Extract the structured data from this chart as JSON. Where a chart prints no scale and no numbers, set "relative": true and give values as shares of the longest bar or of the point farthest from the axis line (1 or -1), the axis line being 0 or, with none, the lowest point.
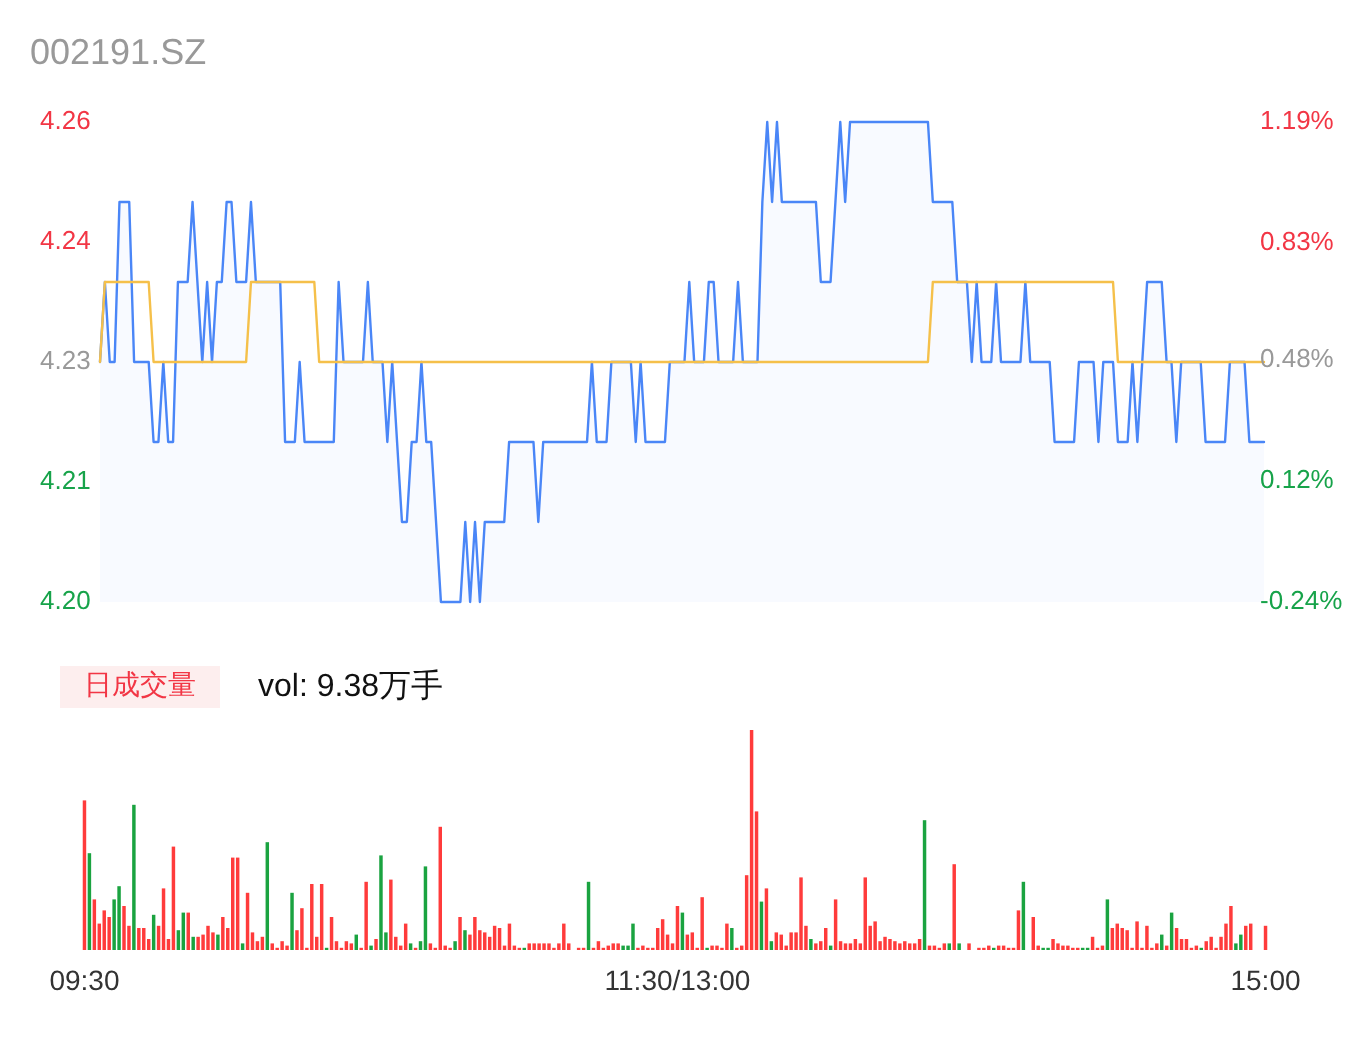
{
  "chart_data": [
    {
      "type": "line",
      "title": "002191.SZ",
      "tick_labels": "y",
      "ylim": [
        4.2,
        4.26
      ],
      "yticks": [
        {
          "value": 4.2,
          "label": "4.20"
        },
        {
          "value": 4.215,
          "label": "4.21"
        },
        4.23,
        {
          "value": 4.245,
          "label": "4.24"
        },
        4.26
      ],
      "y2lim": [
        -0.24,
        1.19
      ],
      "y2ticks": [
        {
          "value": -0.24,
          "label": "-0.24%"
        },
        {
          "value": 0.12,
          "label": "0.12%"
        },
        {
          "value": 0.48,
          "label": "0.48%"
        },
        {
          "value": 0.83,
          "label": "0.83%"
        },
        {
          "value": 1.19,
          "label": "1.19%"
        }
      ],
      "categories": [
        null,
        null,
        null,
        null,
        null,
        null,
        null,
        null,
        null,
        null,
        null,
        null,
        null,
        null,
        null,
        null,
        null,
        null,
        null,
        null,
        null,
        null,
        null,
        null,
        null,
        null,
        null,
        null,
        null,
        null,
        null,
        null,
        null,
        null,
        null,
        null,
        null,
        null,
        null,
        null,
        null,
        null,
        null,
        null,
        null,
        null,
        null,
        null,
        null,
        null,
        null,
        null,
        null,
        null,
        null,
        null,
        null,
        null,
        null,
        null,
        null,
        null,
        null,
        null,
        null,
        null,
        null,
        null,
        null,
        null,
        null,
        null,
        null,
        null,
        null,
        null,
        null,
        null,
        null,
        null,
        null,
        null,
        null,
        null,
        null,
        null,
        null,
        null,
        null,
        null,
        null,
        null,
        null,
        null,
        null,
        null,
        null,
        null,
        null,
        null,
        null,
        null,
        null,
        null,
        null,
        null,
        null,
        null,
        null,
        null,
        null,
        null,
        null,
        null,
        null,
        null,
        null,
        null,
        null,
        null,
        null,
        null,
        null,
        null,
        null,
        null,
        null,
        null,
        null,
        null,
        null,
        null,
        null,
        null,
        null,
        null,
        null,
        null,
        null,
        null,
        null,
        null,
        null,
        null,
        null,
        null,
        null,
        null,
        null,
        null,
        null,
        null,
        null,
        null,
        null,
        null,
        null,
        null,
        null,
        null,
        null,
        null,
        null,
        null,
        null,
        null,
        null,
        null,
        null,
        null,
        null,
        null,
        null,
        null,
        null,
        null,
        null,
        null,
        null,
        null,
        null,
        null,
        null,
        null,
        null,
        null,
        null,
        null,
        null,
        null,
        null,
        null,
        null,
        null,
        null,
        null,
        null,
        null,
        null,
        null,
        null,
        null,
        null,
        null,
        null,
        null,
        null,
        null,
        null,
        null,
        null,
        null,
        null,
        null,
        null,
        null,
        null,
        null,
        null,
        null,
        null,
        null,
        null,
        null,
        null,
        null,
        null,
        null,
        null,
        null,
        null,
        null,
        null,
        null,
        null,
        null,
        null,
        null,
        null,
        null
      ],
      "series": [
        {
          "type": "area",
          "color": "#4a86f7",
          "values": [
            4.23,
            4.24,
            4.23,
            4.23,
            4.25,
            4.25,
            4.25,
            4.23,
            4.23,
            4.23,
            4.23,
            4.22,
            4.22,
            4.23,
            4.22,
            4.22,
            4.24,
            4.24,
            4.24,
            4.25,
            4.24,
            4.23,
            4.24,
            4.23,
            4.24,
            4.24,
            4.25,
            4.25,
            4.24,
            4.24,
            4.24,
            4.25,
            4.24,
            4.24,
            4.24,
            4.24,
            4.24,
            4.24,
            4.22,
            4.22,
            4.22,
            4.23,
            4.22,
            4.22,
            4.22,
            4.22,
            4.22,
            4.22,
            4.22,
            4.24,
            4.23,
            4.23,
            4.23,
            4.23,
            4.23,
            4.24,
            4.23,
            4.23,
            4.23,
            4.22,
            4.23,
            4.22,
            4.21,
            4.21,
            4.22,
            4.22,
            4.23,
            4.22,
            4.22,
            4.21,
            4.2,
            4.2,
            4.2,
            4.2,
            4.2,
            4.21,
            4.2,
            4.21,
            4.2,
            4.21,
            4.21,
            4.21,
            4.21,
            4.21,
            4.22,
            4.22,
            4.22,
            4.22,
            4.22,
            4.22,
            4.21,
            4.22,
            4.22,
            4.22,
            4.22,
            4.22,
            4.22,
            4.22,
            4.22,
            4.22,
            4.22,
            4.23,
            4.22,
            4.22,
            4.22,
            4.23,
            4.23,
            4.23,
            4.23,
            4.23,
            4.22,
            4.23,
            4.22,
            4.22,
            4.22,
            4.22,
            4.22,
            4.23,
            4.23,
            4.23,
            4.23,
            4.24,
            4.23,
            4.23,
            4.23,
            4.24,
            4.24,
            4.23,
            4.23,
            4.23,
            4.23,
            4.24,
            4.23,
            4.23,
            4.23,
            4.23,
            4.25,
            4.26,
            4.25,
            4.26,
            4.25,
            4.25,
            4.25,
            4.25,
            4.25,
            4.25,
            4.25,
            4.25,
            4.24,
            4.24,
            4.24,
            4.25,
            4.26,
            4.25,
            4.26,
            4.26,
            4.26,
            4.26,
            4.26,
            4.26,
            4.26,
            4.26,
            4.26,
            4.26,
            4.26,
            4.26,
            4.26,
            4.26,
            4.26,
            4.26,
            4.26,
            4.25,
            4.25,
            4.25,
            4.25,
            4.25,
            4.24,
            4.24,
            4.24,
            4.23,
            4.24,
            4.23,
            4.23,
            4.23,
            4.24,
            4.23,
            4.23,
            4.23,
            4.23,
            4.23,
            4.24,
            4.23,
            4.23,
            4.23,
            4.23,
            4.23,
            4.22,
            4.22,
            4.22,
            4.22,
            4.22,
            4.23,
            4.23,
            4.23,
            4.23,
            4.22,
            4.23,
            4.23,
            4.23,
            4.22,
            4.22,
            4.22,
            4.23,
            4.22,
            4.23,
            4.24,
            4.24,
            4.24,
            4.24,
            4.23,
            4.23,
            4.22,
            4.23,
            4.23,
            4.23,
            4.23,
            4.23,
            4.22,
            4.22,
            4.22,
            4.22,
            4.22,
            4.23,
            4.23,
            4.23,
            4.23,
            4.22,
            4.22,
            4.22,
            4.22
          ]
        },
        {
          "type": "line",
          "color": "#f5c04a",
          "values": [
            4.23,
            4.24,
            4.24,
            4.24,
            4.24,
            4.24,
            4.24,
            4.24,
            4.24,
            4.24,
            4.24,
            4.23,
            4.23,
            4.23,
            4.23,
            4.23,
            4.23,
            4.23,
            4.23,
            4.23,
            4.23,
            4.23,
            4.23,
            4.23,
            4.23,
            4.23,
            4.23,
            4.23,
            4.23,
            4.23,
            4.23,
            4.24,
            4.24,
            4.24,
            4.24,
            4.24,
            4.24,
            4.24,
            4.24,
            4.24,
            4.24,
            4.24,
            4.24,
            4.24,
            4.24,
            4.23,
            4.23,
            4.23,
            4.23,
            4.23,
            4.23,
            4.23,
            4.23,
            4.23,
            4.23,
            4.23,
            4.23,
            4.23,
            4.23,
            4.23,
            4.23,
            4.23,
            4.23,
            4.23,
            4.23,
            4.23,
            4.23,
            4.23,
            4.23,
            4.23,
            4.23,
            4.23,
            4.23,
            4.23,
            4.23,
            4.23,
            4.23,
            4.23,
            4.23,
            4.23,
            4.23,
            4.23,
            4.23,
            4.23,
            4.23,
            4.23,
            4.23,
            4.23,
            4.23,
            4.23,
            4.23,
            4.23,
            4.23,
            4.23,
            4.23,
            4.23,
            4.23,
            4.23,
            4.23,
            4.23,
            4.23,
            4.23,
            4.23,
            4.23,
            4.23,
            4.23,
            4.23,
            4.23,
            4.23,
            4.23,
            4.23,
            4.23,
            4.23,
            4.23,
            4.23,
            4.23,
            4.23,
            4.23,
            4.23,
            4.23,
            4.23,
            4.23,
            4.23,
            4.23,
            4.23,
            4.23,
            4.23,
            4.23,
            4.23,
            4.23,
            4.23,
            4.23,
            4.23,
            4.23,
            4.23,
            4.23,
            4.23,
            4.23,
            4.23,
            4.23,
            4.23,
            4.23,
            4.23,
            4.23,
            4.23,
            4.23,
            4.23,
            4.23,
            4.23,
            4.23,
            4.23,
            4.23,
            4.23,
            4.23,
            4.23,
            4.23,
            4.23,
            4.23,
            4.23,
            4.23,
            4.23,
            4.23,
            4.23,
            4.23,
            4.23,
            4.23,
            4.23,
            4.23,
            4.23,
            4.23,
            4.23,
            4.24,
            4.24,
            4.24,
            4.24,
            4.24,
            4.24,
            4.24,
            4.24,
            4.24,
            4.24,
            4.24,
            4.24,
            4.24,
            4.24,
            4.24,
            4.24,
            4.24,
            4.24,
            4.24,
            4.24,
            4.24,
            4.24,
            4.24,
            4.24,
            4.24,
            4.24,
            4.24,
            4.24,
            4.24,
            4.24,
            4.24,
            4.24,
            4.24,
            4.24,
            4.24,
            4.24,
            4.24,
            4.24,
            4.23,
            4.23,
            4.23,
            4.23,
            4.23,
            4.23,
            4.23,
            4.23,
            4.23,
            4.23,
            4.23,
            4.23,
            4.23,
            4.23,
            4.23,
            4.23,
            4.23,
            4.23,
            4.23,
            4.23,
            4.23,
            4.23,
            4.23,
            4.23,
            4.23,
            4.23,
            4.23,
            4.23,
            4.23,
            4.23,
            4.23
          ]
        }
      ]
    },
    {
      "type": "bar",
      "title": "日成交量",
      "annotations": [
        "vol: 9.38万手"
      ],
      "relative": true,
      "tick_labels": "x",
      "categories": [
        "09:30",
        null,
        null,
        null,
        null,
        null,
        null,
        null,
        null,
        null,
        null,
        null,
        null,
        null,
        null,
        null,
        null,
        null,
        null,
        null,
        null,
        null,
        null,
        null,
        null,
        null,
        null,
        null,
        null,
        null,
        null,
        null,
        null,
        null,
        null,
        null,
        null,
        null,
        null,
        null,
        null,
        null,
        null,
        null,
        null,
        null,
        null,
        null,
        null,
        null,
        null,
        null,
        null,
        null,
        null,
        null,
        null,
        null,
        null,
        null,
        null,
        null,
        null,
        null,
        null,
        null,
        null,
        null,
        null,
        null,
        null,
        null,
        null,
        null,
        null,
        null,
        null,
        null,
        null,
        null,
        null,
        null,
        null,
        null,
        null,
        null,
        null,
        null,
        null,
        null,
        null,
        null,
        null,
        null,
        null,
        null,
        null,
        null,
        null,
        null,
        null,
        null,
        null,
        null,
        null,
        null,
        null,
        null,
        null,
        null,
        null,
        null,
        null,
        null,
        null,
        null,
        null,
        null,
        null,
        null,
        "11:30/13:00",
        null,
        null,
        null,
        null,
        null,
        null,
        null,
        null,
        null,
        null,
        null,
        null,
        null,
        null,
        null,
        null,
        null,
        null,
        null,
        null,
        null,
        null,
        null,
        null,
        null,
        null,
        null,
        null,
        null,
        null,
        null,
        null,
        null,
        null,
        null,
        null,
        null,
        null,
        null,
        null,
        null,
        null,
        null,
        null,
        null,
        null,
        null,
        null,
        null,
        null,
        null,
        null,
        null,
        null,
        null,
        null,
        null,
        null,
        null,
        null,
        null,
        null,
        null,
        null,
        null,
        null,
        null,
        null,
        null,
        null,
        null,
        null,
        null,
        null,
        null,
        null,
        null,
        null,
        null,
        null,
        null,
        null,
        null,
        null,
        null,
        null,
        null,
        null,
        null,
        null,
        null,
        null,
        null,
        null,
        null,
        null,
        null,
        null,
        null,
        null,
        null,
        null,
        null,
        null,
        null,
        null,
        null,
        null,
        null,
        null,
        null,
        null,
        null,
        null,
        null,
        null,
        null,
        null,
        "15:00"
      ],
      "values": [
        0.68,
        0.44,
        0.23,
        0.12,
        0.18,
        0.15,
        0.23,
        0.29,
        0.2,
        0.11,
        0.66,
        0.1,
        0.1,
        0.05,
        0.16,
        0.11,
        0.28,
        0.05,
        0.47,
        0.09,
        0.17,
        0.17,
        0.06,
        0.06,
        0.07,
        0.11,
        0.08,
        0.07,
        0.15,
        0.1,
        0.42,
        0.42,
        0.03,
        0.26,
        0.08,
        0.04,
        0.06,
        0.49,
        0.03,
        0.01,
        0.04,
        0.02,
        0.26,
        0.09,
        0.19,
        0.01,
        0.3,
        0.06,
        0.3,
        0.01,
        0.15,
        0.04,
        0.01,
        0.04,
        0.03,
        0.07,
        0.01,
        0.31,
        0.02,
        0.05,
        0.43,
        0.08,
        0.32,
        0.06,
        0.02,
        0.12,
        0.03,
        0.01,
        0.04,
        0.38,
        0.03,
        0.01,
        0.56,
        0.02,
        0.01,
        0.04,
        0.15,
        0.09,
        0.07,
        0.15,
        0.09,
        0.08,
        0.06,
        0.11,
        0.1,
        0.02,
        0.12,
        0.02,
        0.01,
        0.01,
        0.03,
        0.03,
        0.03,
        0.03,
        0.03,
        0.01,
        0.03,
        0.12,
        0.03,
        0,
        0.01,
        0.01,
        0.31,
        0.01,
        0.04,
        0.01,
        0.02,
        0.03,
        0.03,
        0.02,
        0.02,
        0.12,
        0.01,
        0.02,
        0.01,
        0.01,
        0.1,
        0.14,
        0.07,
        0.03,
        0.2,
        0.17,
        0.07,
        0.08,
        0.01,
        0.24,
        0.01,
        0.02,
        0.02,
        0.01,
        0.12,
        0.1,
        0.01,
        0.02,
        0.34,
        1,
        0.63,
        0.22,
        0.28,
        0.04,
        0.08,
        0.07,
        0.02,
        0.08,
        0.08,
        0.33,
        0.11,
        0.05,
        0.03,
        0.04,
        0.1,
        0.02,
        0.23,
        0.04,
        0.03,
        0.03,
        0.05,
        0.03,
        0.33,
        0.11,
        0.13,
        0.04,
        0.06,
        0.05,
        0.04,
        0.03,
        0.04,
        0.03,
        0.03,
        0.05,
        0.59,
        0.02,
        0.02,
        0.01,
        0.03,
        0.03,
        0.39,
        0.03,
        0,
        0.03,
        0,
        0.01,
        0.01,
        0.02,
        0.01,
        0.02,
        0.02,
        0.01,
        0.01,
        0.18,
        0.31,
        0,
        0.15,
        0.02,
        0.01,
        0.01,
        0.05,
        0.03,
        0.02,
        0.02,
        0.01,
        0.01,
        0.01,
        0.01,
        0.06,
        0.01,
        0.02,
        0.23,
        0.1,
        0.12,
        0.1,
        0.09,
        0.01,
        0.13,
        0.01,
        0.11,
        0.01,
        0.03,
        0.07,
        0.02,
        0.17,
        0.1,
        0.05,
        0.05,
        0.01,
        0.02,
        0.01,
        0.04,
        0.06,
        0.01,
        0.06,
        0.12,
        0.2,
        0.03,
        0.07,
        0.11,
        0.12,
        0,
        0,
        0.11
      ],
      "colors": [
        "#ff3b3b",
        "#1aa340",
        "#ff3b3b",
        "#ff3b3b",
        "#ff3b3b",
        "#ff3b3b",
        "#1aa340",
        "#1aa340",
        "#ff3b3b",
        "#ff3b3b",
        "#1aa340",
        "#ff3b3b",
        "#ff3b3b",
        "#ff3b3b",
        "#1aa340",
        "#ff3b3b",
        "#ff3b3b",
        "#ff3b3b",
        "#ff3b3b",
        "#1aa340",
        "#1aa340",
        "#ff3b3b",
        "#1aa340",
        "#ff3b3b",
        "#ff3b3b",
        "#ff3b3b",
        "#ff3b3b",
        "#1aa340",
        "#ff3b3b",
        "#ff3b3b",
        "#ff3b3b",
        "#ff3b3b",
        "#1aa340",
        "#ff3b3b",
        "#ff3b3b",
        "#ff3b3b",
        "#ff3b3b",
        "#1aa340",
        "#ff3b3b",
        "#ff3b3b",
        "#ff3b3b",
        "#ff3b3b",
        "#1aa340",
        "#ff3b3b",
        "#ff3b3b",
        "#ff3b3b",
        "#ff3b3b",
        "#ff3b3b",
        "#ff3b3b",
        "#1aa340",
        "#ff3b3b",
        "#ff3b3b",
        "#ff3b3b",
        "#ff3b3b",
        "#ff3b3b",
        "#1aa340",
        "#ff3b3b",
        "#ff3b3b",
        "#1aa340",
        "#ff3b3b",
        "#1aa340",
        "#1aa340",
        "#ff3b3b",
        "#ff3b3b",
        "#ff3b3b",
        "#ff3b3b",
        "#1aa340",
        "#ff3b3b",
        "#1aa340",
        "#1aa340",
        "#ff3b3b",
        "#ff3b3b",
        "#ff3b3b",
        "#ff3b3b",
        "#ff3b3b",
        "#1aa340",
        "#ff3b3b",
        "#1aa340",
        "#ff3b3b",
        "#ff3b3b",
        "#ff3b3b",
        "#ff3b3b",
        "#ff3b3b",
        "#ff3b3b",
        "#ff3b3b",
        "#ff3b3b",
        "#ff3b3b",
        "#ff3b3b",
        "#ff3b3b",
        "#1aa340",
        "#ff3b3b",
        "#ff3b3b",
        "#ff3b3b",
        "#ff3b3b",
        "#ff3b3b",
        "#ff3b3b",
        "#ff3b3b",
        "#ff3b3b",
        "#ff3b3b",
        "#ff3b3b",
        "#ff3b3b",
        "#ff3b3b",
        "#1aa340",
        "#ff3b3b",
        "#ff3b3b",
        "#ff3b3b",
        "#ff3b3b",
        "#ff3b3b",
        "#ff3b3b",
        "#1aa340",
        "#1aa340",
        "#1aa340",
        "#ff3b3b",
        "#ff3b3b",
        "#ff3b3b",
        "#ff3b3b",
        "#ff3b3b",
        "#ff3b3b",
        "#ff3b3b",
        "#ff3b3b",
        "#ff3b3b",
        "#1aa340",
        "#ff3b3b",
        "#ff3b3b",
        "#ff3b3b",
        "#ff3b3b",
        "#1aa340",
        "#ff3b3b",
        "#ff3b3b",
        "#ff3b3b",
        "#ff3b3b",
        "#1aa340",
        "#ff3b3b",
        "#ff3b3b",
        "#ff3b3b",
        "#ff3b3b",
        "#ff3b3b",
        "#1aa340",
        "#ff3b3b",
        "#1aa340",
        "#ff3b3b",
        "#ff3b3b",
        "#ff3b3b",
        "#ff3b3b",
        "#ff3b3b",
        "#ff3b3b",
        "#ff3b3b",
        "#1aa340",
        "#ff3b3b",
        "#ff3b3b",
        "#ff3b3b",
        "#1aa340",
        "#ff3b3b",
        "#ff3b3b",
        "#ff3b3b",
        "#ff3b3b",
        "#ff3b3b",
        "#ff3b3b",
        "#ff3b3b",
        "#ff3b3b",
        "#ff3b3b",
        "#ff3b3b",
        "#ff3b3b",
        "#ff3b3b",
        "#ff3b3b",
        "#ff3b3b",
        "#ff3b3b",
        "#ff3b3b",
        "#ff3b3b",
        "#ff3b3b",
        "#1aa340",
        "#ff3b3b",
        "#ff3b3b",
        "#ff3b3b",
        "#ff3b3b",
        "#1aa340",
        "#ff3b3b",
        "#1aa340",
        "#ff3b3b",
        "#ff3b3b",
        "#ff3b3b",
        "#ff3b3b",
        "#ff3b3b",
        "#ff3b3b",
        "#1aa340",
        "#ff3b3b",
        "#ff3b3b",
        "#ff3b3b",
        "#ff3b3b",
        "#ff3b3b",
        "#1aa340",
        "#ff3b3b",
        "#ff3b3b",
        "#ff3b3b",
        "#1aa340",
        "#1aa340",
        "#ff3b3b",
        "#ff3b3b",
        "#ff3b3b",
        "#ff3b3b",
        "#ff3b3b",
        "#ff3b3b",
        "#1aa340",
        "#1aa340",
        "#ff3b3b",
        "#ff3b3b",
        "#ff3b3b",
        "#1aa340",
        "#ff3b3b",
        "#ff3b3b",
        "#ff3b3b",
        "#ff3b3b",
        "#ff3b3b",
        "#ff3b3b",
        "#ff3b3b",
        "#ff3b3b",
        "#ff3b3b",
        "#ff3b3b",
        "#1aa340",
        "#ff3b3b",
        "#1aa340",
        "#ff3b3b",
        "#ff3b3b",
        "#ff3b3b",
        "#ff3b3b",
        "#ff3b3b",
        "#1aa340",
        "#ff3b3b",
        "#ff3b3b",
        "#ff3b3b",
        "#ff3b3b",
        "#ff3b3b",
        "#ff3b3b",
        "#1aa340",
        "#1aa340",
        "#ff3b3b",
        "#ff3b3b",
        "#ff3b3b",
        "#ff3b3b",
        "#ff3b3b"
      ]
    }
  ]
}
